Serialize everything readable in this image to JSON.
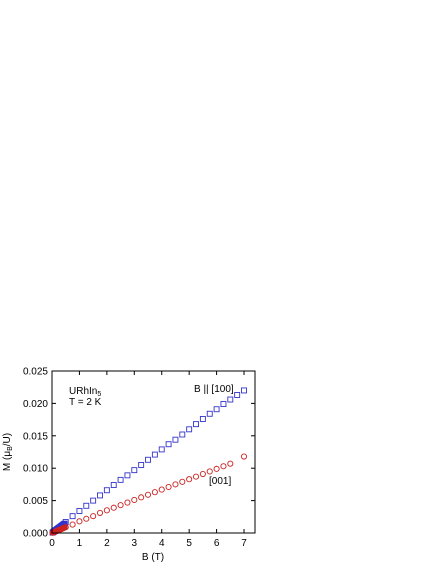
{
  "chart_data": {
    "type": "scatter",
    "xlabel": "B (T)",
    "ylabel": {
      "prefix": "M (",
      "mu": "μ",
      "sub": "B",
      "suffix": "/U)"
    },
    "xlim": [
      0,
      7.4
    ],
    "ylim": [
      0,
      0.025
    ],
    "x_ticks": [
      "0",
      "1",
      "2",
      "3",
      "4",
      "5",
      "6",
      "7"
    ],
    "x_tick_values": [
      0,
      1,
      2,
      3,
      4,
      5,
      6,
      7
    ],
    "y_ticks": [
      "0.000",
      "0.005",
      "0.010",
      "0.015",
      "0.020",
      "0.025"
    ],
    "y_tick_values": [
      0,
      0.005,
      0.01,
      0.015,
      0.02,
      0.025
    ],
    "grid": false,
    "annotation": {
      "compound_main": "URhIn",
      "compound_sub": "5",
      "temperature": "T = 2 K"
    },
    "series": [
      {
        "name": "B || [100]",
        "marker": "square",
        "color": "#3333cc",
        "x": [
          0.02,
          0.04,
          0.06,
          0.08,
          0.1,
          0.12,
          0.14,
          0.16,
          0.18,
          0.2,
          0.22,
          0.24,
          0.26,
          0.28,
          0.3,
          0.32,
          0.34,
          0.36,
          0.38,
          0.4,
          0.42,
          0.44,
          0.46,
          0.5,
          0.75,
          1.0,
          1.25,
          1.5,
          1.75,
          2.0,
          2.25,
          2.5,
          2.75,
          3.0,
          3.25,
          3.5,
          3.75,
          4.0,
          4.25,
          4.5,
          4.75,
          5.0,
          5.25,
          5.5,
          5.75,
          6.0,
          6.25,
          6.5,
          6.75,
          7.0
        ],
        "y": [
          6e-05,
          0.00013,
          0.00019,
          0.00025,
          0.00032,
          0.00038,
          0.00044,
          0.0005,
          0.00057,
          0.00063,
          0.00069,
          0.00076,
          0.00082,
          0.00088,
          0.00095,
          0.00101,
          0.00107,
          0.00113,
          0.0012,
          0.00126,
          0.00132,
          0.00139,
          0.00145,
          0.0017,
          0.0026,
          0.0034,
          0.0042,
          0.005,
          0.0058,
          0.0066,
          0.0074,
          0.0082,
          0.0089,
          0.0097,
          0.0105,
          0.0113,
          0.0121,
          0.0129,
          0.0137,
          0.0144,
          0.0152,
          0.016,
          0.0168,
          0.0176,
          0.0184,
          0.0191,
          0.0199,
          0.0206,
          0.0213,
          0.022
        ]
      },
      {
        "name": "[001]",
        "marker": "circle",
        "color": "#cc2222",
        "x": [
          0.02,
          0.04,
          0.06,
          0.08,
          0.1,
          0.12,
          0.14,
          0.16,
          0.18,
          0.2,
          0.22,
          0.24,
          0.26,
          0.28,
          0.3,
          0.32,
          0.34,
          0.36,
          0.38,
          0.4,
          0.42,
          0.44,
          0.46,
          0.5,
          0.75,
          1.0,
          1.25,
          1.5,
          1.75,
          2.0,
          2.25,
          2.5,
          2.75,
          3.0,
          3.25,
          3.5,
          3.75,
          4.0,
          4.25,
          4.5,
          4.75,
          5.0,
          5.25,
          5.5,
          5.75,
          6.0,
          6.25,
          6.5,
          7.0
        ],
        "y": [
          4e-05,
          7e-05,
          0.00011,
          0.00014,
          0.00018,
          0.00022,
          0.00025,
          0.00029,
          0.00032,
          0.00036,
          0.0004,
          0.00043,
          0.00047,
          0.0005,
          0.00054,
          0.00058,
          0.00061,
          0.00065,
          0.00068,
          0.00072,
          0.00076,
          0.00079,
          0.00083,
          0.0009,
          0.0013,
          0.0018,
          0.0022,
          0.0026,
          0.0031,
          0.0035,
          0.0039,
          0.0043,
          0.0047,
          0.0051,
          0.0055,
          0.0059,
          0.0063,
          0.0067,
          0.0071,
          0.0075,
          0.0079,
          0.0083,
          0.0087,
          0.0091,
          0.0095,
          0.0099,
          0.0103,
          0.0107,
          0.0118
        ]
      }
    ]
  }
}
